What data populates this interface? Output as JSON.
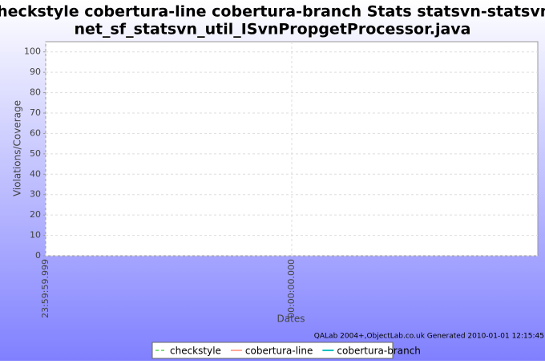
{
  "chart_data": {
    "type": "line",
    "title": [
      "checkstyle cobertura-line cobertura-branch  Stats statsvn-statsvn-",
      "net_sf_statsvn_util_ISvnPropgetProcessor.java"
    ],
    "x_label": "Dates",
    "y_label": "Violations/Coverage",
    "footer": "QALab 2004+,ObjectLab.co.uk Generated 2010-01-01 12:15:45",
    "x": [
      "23:59:59.999",
      "00:00:00.000"
    ],
    "series": [
      {
        "name": "checkstyle",
        "color": "#7fe07f",
        "dash": true,
        "values": [
          null,
          null
        ]
      },
      {
        "name": "cobertura-line",
        "color": "#ffaa99",
        "dash": false,
        "values": [
          null,
          null
        ]
      },
      {
        "name": "cobertura-branch",
        "color": "#00c0c0",
        "dash": false,
        "values": [
          null,
          null
        ]
      }
    ],
    "ylim": [
      0,
      105
    ],
    "yticks": [
      0,
      10,
      20,
      30,
      40,
      50,
      60,
      70,
      80,
      90,
      100
    ],
    "grid": true
  }
}
